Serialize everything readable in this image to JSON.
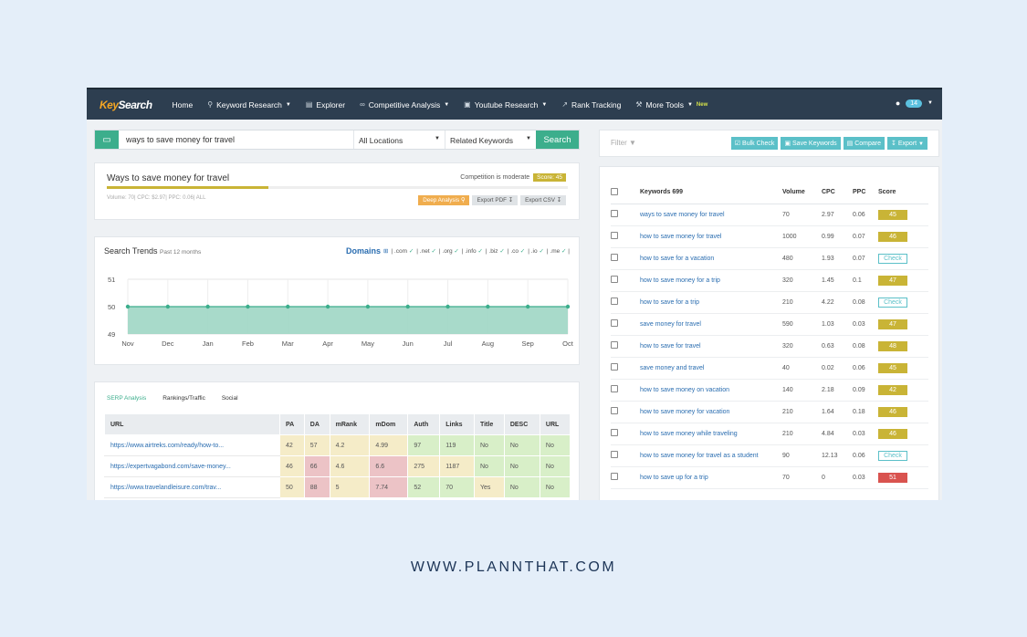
{
  "nav": {
    "logo_a": "Key",
    "logo_b": "Search",
    "items": [
      "Home",
      "Keyword Research",
      "Explorer",
      "Competitive Analysis",
      "Youtube Research",
      "Rank Tracking",
      "More Tools"
    ],
    "new_badge": "New",
    "user_count": "14"
  },
  "search": {
    "value": "ways to save money for travel",
    "location": "All Locations",
    "mode": "Related Keywords",
    "button": "Search"
  },
  "summary": {
    "title": "Ways to save money for travel",
    "competition": "Competition is moderate",
    "score": "Score: 45",
    "score_fraction": 0.45,
    "metrics": "Volume: 70| CPC: $2.97| PPC: 0.06| ALL",
    "deep": "Deep Analysis",
    "pdf": "Export PDF",
    "csv": "Export CSV"
  },
  "trends": {
    "title": "Search Trends",
    "subtitle": "Past 12 months",
    "domains_label": "Domains",
    "domains": [
      ".com",
      ".net",
      ".org",
      ".info",
      ".biz",
      ".co",
      ".io",
      ".me"
    ]
  },
  "chart_data": {
    "type": "area",
    "categories": [
      "Nov",
      "Dec",
      "Jan",
      "Feb",
      "Mar",
      "Apr",
      "May",
      "Jun",
      "Jul",
      "Aug",
      "Sep",
      "Oct"
    ],
    "values": [
      50,
      50,
      50,
      50,
      50,
      50,
      50,
      50,
      50,
      50,
      50,
      50
    ],
    "ylim": [
      49,
      51
    ],
    "yticks": [
      "51",
      "50",
      "49"
    ],
    "grid": true,
    "color": "#9fd6c4"
  },
  "serp": {
    "tabs": [
      "SERP Analysis",
      "Rankings/Traffic",
      "Social"
    ],
    "headers": [
      "URL",
      "PA",
      "DA",
      "mRank",
      "mDom",
      "Auth",
      "Links",
      "Title",
      "DESC",
      "URL"
    ],
    "rows": [
      [
        "https://www.airtreks.com/ready/how-to...",
        "42",
        "57",
        "4.2",
        "4.99",
        "97",
        "119",
        "No",
        "No",
        "No"
      ],
      [
        "https://expertvagabond.com/save-money...",
        "46",
        "66",
        "4.6",
        "6.6",
        "275",
        "1187",
        "No",
        "No",
        "No"
      ],
      [
        "https://www.travelandleisure.com/trav...",
        "50",
        "88",
        "5",
        "7.74",
        "52",
        "70",
        "Yes",
        "No",
        "No"
      ]
    ]
  },
  "right": {
    "filter": "Filter",
    "buttons": [
      "Bulk Check",
      "Save Keywords",
      "Compare",
      "Export"
    ],
    "headers": [
      "Keywords 699",
      "Volume",
      "CPC",
      "PPC",
      "Score"
    ],
    "rows": [
      [
        "ways to save money for travel",
        "70",
        "2.97",
        "0.06",
        "45"
      ],
      [
        "how to save money for travel",
        "1000",
        "0.99",
        "0.07",
        "46"
      ],
      [
        "how to save for a vacation",
        "480",
        "1.93",
        "0.07",
        "Check"
      ],
      [
        "how to save money for a trip",
        "320",
        "1.45",
        "0.1",
        "47"
      ],
      [
        "how to save for a trip",
        "210",
        "4.22",
        "0.08",
        "Check"
      ],
      [
        "save money for travel",
        "590",
        "1.03",
        "0.03",
        "47"
      ],
      [
        "how to save for travel",
        "320",
        "0.63",
        "0.08",
        "48"
      ],
      [
        "save money and travel",
        "40",
        "0.02",
        "0.06",
        "45"
      ],
      [
        "how to save money on vacation",
        "140",
        "2.18",
        "0.09",
        "42"
      ],
      [
        "how to save money for vacation",
        "210",
        "1.64",
        "0.18",
        "46"
      ],
      [
        "how to save money while traveling",
        "210",
        "4.84",
        "0.03",
        "46"
      ],
      [
        "how to save money for travel as a student",
        "90",
        "12.13",
        "0.06",
        "Check"
      ],
      [
        "how to save up for a trip",
        "70",
        "0",
        "0.03",
        "51"
      ]
    ]
  },
  "footer": "WWW.PLANNTHAT.COM"
}
